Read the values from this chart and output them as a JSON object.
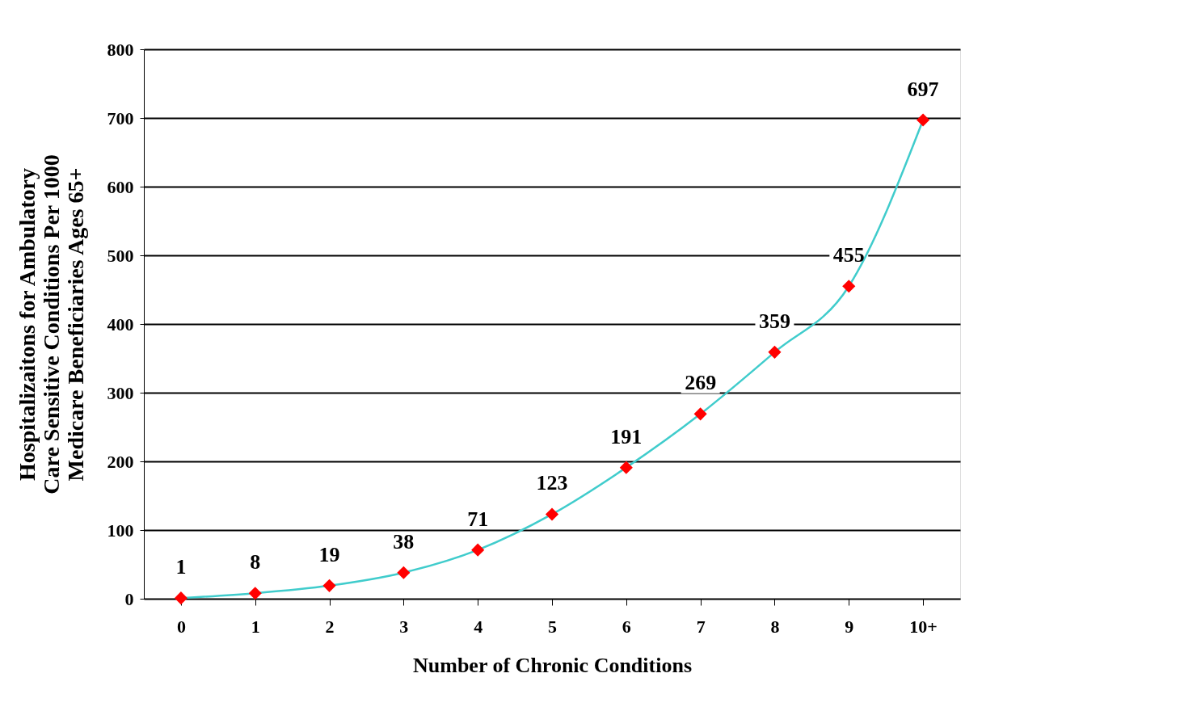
{
  "chart_data": {
    "type": "line",
    "xlabel": "Number of Chronic Conditions",
    "ylabel": "Hospitalizaitons for Ambulatory Care Sensitive Conditions Per 1000 Medicare Beneficiaries Ages 65+",
    "categories": [
      "0",
      "1",
      "2",
      "3",
      "4",
      "5",
      "6",
      "7",
      "8",
      "9",
      "10+"
    ],
    "series": [
      {
        "color": "#40cccc",
        "colors": [
          "#ff0000",
          "#ff0000",
          "#ff0000",
          "#ff0000",
          "#ff0000",
          "#ff0000",
          "#ff0000",
          "#ff0000",
          "#ff0000",
          "#ff0000",
          "#ff0000"
        ],
        "values": [
          1,
          8,
          19,
          38,
          71,
          123,
          191,
          269,
          359,
          455,
          697
        ]
      }
    ],
    "ylim": [
      0,
      800
    ],
    "yticks": [
      0,
      100,
      200,
      300,
      400,
      500,
      600,
      700,
      800
    ],
    "grid": "y",
    "marker": "diamond",
    "line_style": "solid",
    "data_labels": true
  }
}
